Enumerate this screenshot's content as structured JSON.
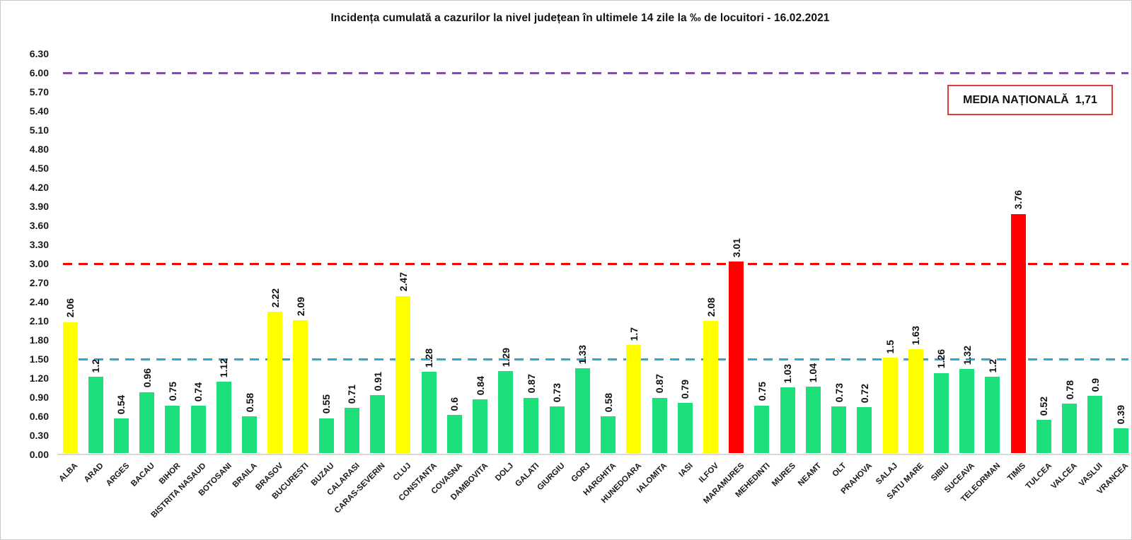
{
  "title": "Incidența cumulată a cazurilor la nivel județean în ultimele 14 zile la ‰ de locuitori - 16.02.2021",
  "national_average_box": {
    "label": "MEDIA NAȚIONALĂ",
    "value": "1,71",
    "border_color": "#e23b3b"
  },
  "colors": {
    "green_bar": "#1ee07a",
    "yellow_bar": "#ffff00",
    "red_bar": "#ff0000",
    "blue_reference_line": "#29a9e1",
    "red_reference_line": "#ff0000",
    "purple_reference_line": "#7b52a3",
    "axis_line": "#d9d9d9",
    "text": "#111111"
  },
  "chart_data": {
    "type": "bar",
    "title": "Incidența cumulată a cazurilor la nivel județean în ultimele 14 zile la ‰ de locuitori - 16.02.2021",
    "xlabel": "",
    "ylabel": "",
    "ylim": [
      0,
      6.3
    ],
    "ytick_step": 0.3,
    "yticks": [
      "6.30",
      "6.00",
      "5.70",
      "5.40",
      "5.10",
      "4.80",
      "4.50",
      "4.20",
      "3.90",
      "3.60",
      "3.30",
      "3.00",
      "2.70",
      "2.40",
      "2.10",
      "1.80",
      "1.50",
      "1.20",
      "0.90",
      "0.60",
      "0.30",
      "0.00"
    ],
    "grid": false,
    "legend": null,
    "categories": [
      "ALBA",
      "ARAD",
      "ARGES",
      "BACAU",
      "BIHOR",
      "BISTRITA NASAUD",
      "BOTOSANI",
      "BRAILA",
      "BRASOV",
      "BUCURESTI",
      "BUZAU",
      "CALARASI",
      "CARAS-SEVERIN",
      "CLUJ",
      "CONSTANTA",
      "COVASNA",
      "DAMBOVITA",
      "DOLJ",
      "GALATI",
      "GIURGIU",
      "GORJ",
      "HARGHITA",
      "HUNEDOARA",
      "IALOMITA",
      "IASI",
      "ILFOV",
      "MARAMURES",
      "MEHEDINTI",
      "MURES",
      "NEAMT",
      "OLT",
      "PRAHOVA",
      "SALAJ",
      "SATU MARE",
      "SIBIU",
      "SUCEAVA",
      "TELEORMAN",
      "TIMIS",
      "TULCEA",
      "VALCEA",
      "VASLUI",
      "VRANCEA"
    ],
    "values": [
      2.06,
      1.2,
      0.54,
      0.96,
      0.75,
      0.74,
      1.12,
      0.58,
      2.22,
      2.09,
      0.55,
      0.71,
      0.91,
      2.47,
      1.28,
      0.6,
      0.84,
      1.29,
      0.87,
      0.73,
      1.33,
      0.58,
      1.7,
      0.87,
      0.79,
      2.08,
      3.01,
      0.75,
      1.03,
      1.04,
      0.73,
      0.72,
      1.5,
      1.63,
      1.26,
      1.32,
      1.2,
      3.76,
      0.52,
      0.78,
      0.9,
      0.39
    ],
    "value_labels": [
      "2.06",
      "1.2",
      "0.54",
      "0.96",
      "0.75",
      "0.74",
      "1.12",
      "0.58",
      "2.22",
      "2.09",
      "0.55",
      "0.71",
      "0.91",
      "2.47",
      "1.28",
      "0.6",
      "0.84",
      "1.29",
      "0.87",
      "0.73",
      "1.33",
      "0.58",
      "1.7",
      "0.87",
      "0.79",
      "2.08",
      "3.01",
      "0.75",
      "1.03",
      "1.04",
      "0.73",
      "0.72",
      "1.5",
      "1.63",
      "1.26",
      "1.32",
      "1.2",
      "3.76",
      "0.52",
      "0.78",
      "0.9",
      "0.39"
    ],
    "bar_colors": [
      "yellow",
      "green",
      "green",
      "green",
      "green",
      "green",
      "green",
      "green",
      "yellow",
      "yellow",
      "green",
      "green",
      "green",
      "yellow",
      "green",
      "green",
      "green",
      "green",
      "green",
      "green",
      "green",
      "green",
      "yellow",
      "green",
      "green",
      "yellow",
      "red",
      "green",
      "green",
      "green",
      "green",
      "green",
      "yellow",
      "yellow",
      "green",
      "green",
      "green",
      "red",
      "green",
      "green",
      "green",
      "green"
    ],
    "color_map": {
      "green": "#1ee07a",
      "yellow": "#ffff00",
      "red": "#ff0000"
    },
    "reference_lines": [
      {
        "value": 6.0,
        "color": "#7b52a3",
        "style": "dashed",
        "name": "purple-threshold-line"
      },
      {
        "value": 3.0,
        "color": "#ff0000",
        "style": "dashed",
        "name": "red-threshold-line"
      },
      {
        "value": 1.5,
        "color": "#29a9e1",
        "style": "dashed",
        "name": "blue-threshold-line"
      }
    ]
  }
}
